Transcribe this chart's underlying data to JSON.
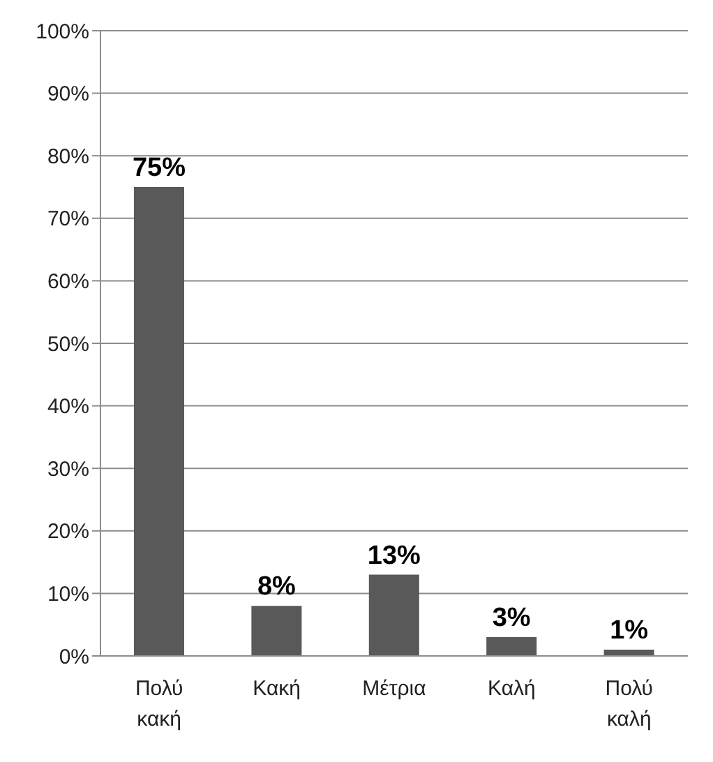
{
  "chart_data": {
    "type": "bar",
    "categories": [
      "Πολύ κακή",
      "Κακή",
      "Μέτρια",
      "Καλή",
      "Πολύ καλή"
    ],
    "values": [
      75,
      8,
      13,
      3,
      1
    ],
    "value_labels": [
      "75%",
      "8%",
      "13%",
      "3%",
      "1%"
    ],
    "color": "#595959",
    "ylim": [
      0,
      100
    ],
    "yticks": [
      {
        "value": 0,
        "label": "0%"
      },
      {
        "value": 10,
        "label": "10%"
      },
      {
        "value": 20,
        "label": "20%"
      },
      {
        "value": 30,
        "label": "30%"
      },
      {
        "value": 40,
        "label": "40%"
      },
      {
        "value": 50,
        "label": "50%"
      },
      {
        "value": 60,
        "label": "60%"
      },
      {
        "value": 70,
        "label": "70%"
      },
      {
        "value": 80,
        "label": "80%"
      },
      {
        "value": 90,
        "label": "90%"
      },
      {
        "value": 100,
        "label": "100%"
      }
    ],
    "grid": "y"
  }
}
